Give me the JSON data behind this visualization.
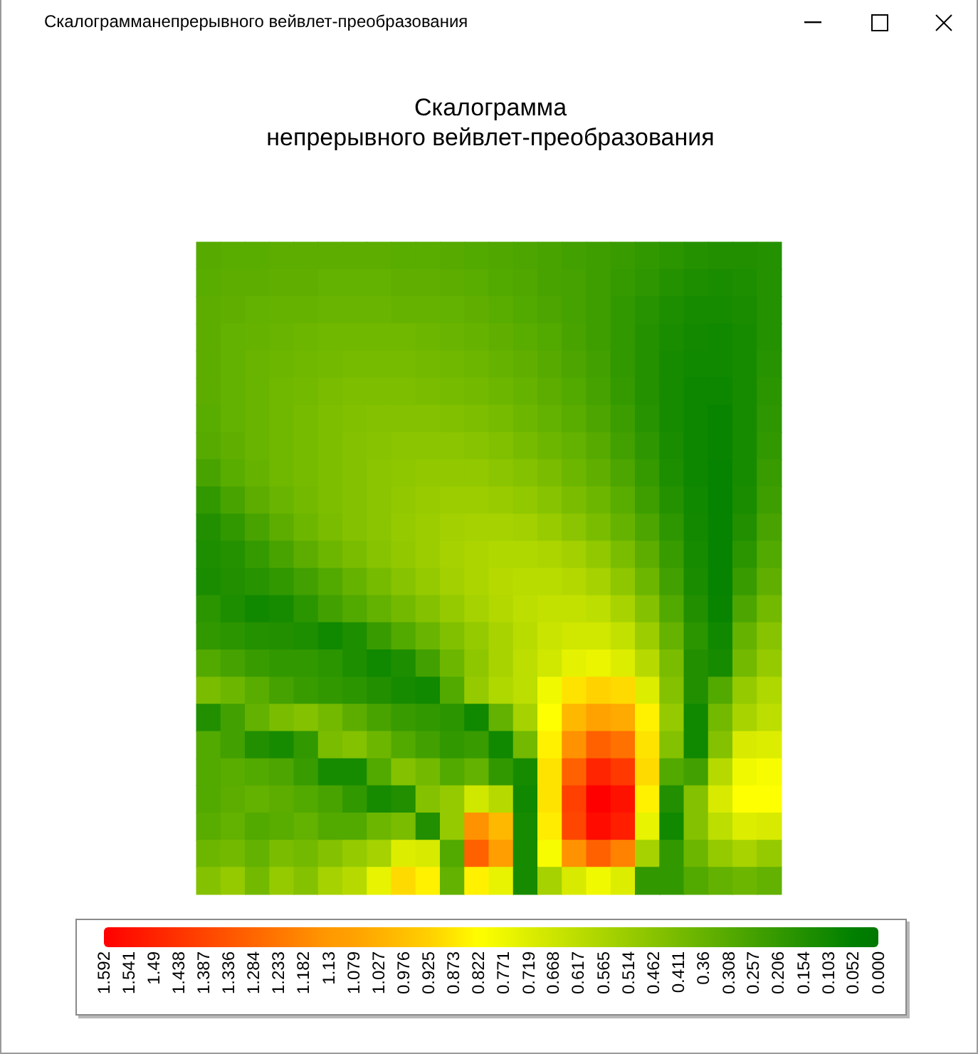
{
  "chart_data": {
    "type": "heatmap",
    "title": "Скалограмма\nнепрерывного вейвлет-преобразования",
    "annotations": [
      "Скалограмманепрерывного вейвлет-преобразования"
    ],
    "categories": [
      null,
      null,
      null,
      null,
      null,
      null,
      null,
      null,
      null,
      null,
      null,
      null,
      null,
      null,
      null,
      null,
      null,
      null,
      null,
      null,
      null,
      null,
      null,
      null
    ],
    "y_categories": [
      null,
      null,
      null,
      null,
      null,
      null,
      null,
      null,
      null,
      null,
      null,
      null,
      null,
      null,
      null,
      null,
      null,
      null,
      null,
      null,
      null,
      null,
      null,
      null
    ],
    "cells": [
      [
        0.31,
        0.32,
        0.32,
        0.33,
        0.33,
        0.33,
        0.33,
        0.33,
        0.32,
        0.32,
        0.31,
        0.3,
        0.29,
        0.28,
        0.27,
        0.25,
        0.24,
        0.22,
        0.2,
        0.18,
        0.16,
        0.15,
        0.15,
        0.16
      ],
      [
        0.32,
        0.33,
        0.33,
        0.34,
        0.34,
        0.35,
        0.35,
        0.35,
        0.34,
        0.34,
        0.33,
        0.32,
        0.3,
        0.29,
        0.27,
        0.26,
        0.24,
        0.21,
        0.19,
        0.16,
        0.14,
        0.13,
        0.14,
        0.16
      ],
      [
        0.33,
        0.34,
        0.35,
        0.36,
        0.36,
        0.37,
        0.37,
        0.37,
        0.36,
        0.36,
        0.35,
        0.34,
        0.32,
        0.3,
        0.28,
        0.26,
        0.24,
        0.2,
        0.17,
        0.14,
        0.12,
        0.12,
        0.13,
        0.16
      ],
      [
        0.33,
        0.35,
        0.36,
        0.37,
        0.38,
        0.39,
        0.39,
        0.39,
        0.39,
        0.38,
        0.37,
        0.36,
        0.34,
        0.32,
        0.3,
        0.27,
        0.24,
        0.2,
        0.16,
        0.13,
        0.11,
        0.1,
        0.12,
        0.16
      ],
      [
        0.33,
        0.35,
        0.37,
        0.38,
        0.39,
        0.4,
        0.41,
        0.41,
        0.41,
        0.4,
        0.39,
        0.38,
        0.36,
        0.34,
        0.31,
        0.28,
        0.25,
        0.2,
        0.16,
        0.12,
        0.1,
        0.1,
        0.12,
        0.17
      ],
      [
        0.33,
        0.35,
        0.37,
        0.39,
        0.4,
        0.42,
        0.43,
        0.43,
        0.43,
        0.42,
        0.41,
        0.4,
        0.38,
        0.36,
        0.33,
        0.3,
        0.26,
        0.21,
        0.16,
        0.12,
        0.09,
        0.09,
        0.12,
        0.18
      ],
      [
        0.32,
        0.35,
        0.37,
        0.39,
        0.41,
        0.43,
        0.44,
        0.45,
        0.45,
        0.45,
        0.44,
        0.43,
        0.41,
        0.38,
        0.35,
        0.32,
        0.28,
        0.23,
        0.17,
        0.12,
        0.09,
        0.08,
        0.12,
        0.19
      ],
      [
        0.31,
        0.34,
        0.37,
        0.39,
        0.41,
        0.43,
        0.45,
        0.46,
        0.47,
        0.47,
        0.47,
        0.46,
        0.44,
        0.41,
        0.38,
        0.35,
        0.31,
        0.25,
        0.19,
        0.13,
        0.09,
        0.08,
        0.12,
        0.2
      ],
      [
        0.27,
        0.32,
        0.36,
        0.39,
        0.41,
        0.43,
        0.45,
        0.47,
        0.48,
        0.49,
        0.49,
        0.49,
        0.47,
        0.45,
        0.42,
        0.38,
        0.34,
        0.28,
        0.21,
        0.14,
        0.09,
        0.07,
        0.12,
        0.22
      ],
      [
        0.2,
        0.27,
        0.33,
        0.37,
        0.4,
        0.43,
        0.45,
        0.47,
        0.49,
        0.51,
        0.52,
        0.52,
        0.51,
        0.49,
        0.46,
        0.42,
        0.38,
        0.32,
        0.24,
        0.16,
        0.1,
        0.07,
        0.13,
        0.24
      ],
      [
        0.15,
        0.2,
        0.27,
        0.33,
        0.38,
        0.42,
        0.45,
        0.47,
        0.5,
        0.52,
        0.54,
        0.55,
        0.55,
        0.54,
        0.51,
        0.47,
        0.42,
        0.36,
        0.28,
        0.19,
        0.11,
        0.07,
        0.15,
        0.27
      ],
      [
        0.14,
        0.16,
        0.21,
        0.27,
        0.33,
        0.38,
        0.42,
        0.46,
        0.49,
        0.52,
        0.55,
        0.57,
        0.58,
        0.58,
        0.57,
        0.54,
        0.49,
        0.42,
        0.33,
        0.22,
        0.12,
        0.07,
        0.18,
        0.3
      ],
      [
        0.13,
        0.15,
        0.17,
        0.2,
        0.25,
        0.3,
        0.36,
        0.41,
        0.46,
        0.5,
        0.54,
        0.57,
        0.6,
        0.61,
        0.61,
        0.59,
        0.55,
        0.48,
        0.38,
        0.25,
        0.13,
        0.07,
        0.22,
        0.34
      ],
      [
        0.18,
        0.14,
        0.1,
        0.12,
        0.18,
        0.25,
        0.3,
        0.35,
        0.4,
        0.45,
        0.5,
        0.55,
        0.59,
        0.62,
        0.64,
        0.64,
        0.62,
        0.56,
        0.45,
        0.3,
        0.15,
        0.08,
        0.28,
        0.4
      ],
      [
        0.2,
        0.18,
        0.16,
        0.15,
        0.14,
        0.1,
        0.14,
        0.22,
        0.3,
        0.37,
        0.44,
        0.5,
        0.56,
        0.61,
        0.66,
        0.68,
        0.68,
        0.64,
        0.52,
        0.36,
        0.18,
        0.1,
        0.36,
        0.46
      ],
      [
        0.3,
        0.26,
        0.22,
        0.2,
        0.2,
        0.18,
        0.14,
        0.1,
        0.14,
        0.25,
        0.38,
        0.48,
        0.56,
        0.62,
        0.68,
        0.74,
        0.76,
        0.72,
        0.6,
        0.42,
        0.15,
        0.12,
        0.4,
        0.5
      ],
      [
        0.42,
        0.38,
        0.32,
        0.26,
        0.22,
        0.2,
        0.18,
        0.15,
        0.12,
        0.1,
        0.3,
        0.5,
        0.58,
        0.62,
        0.78,
        0.88,
        0.92,
        0.9,
        0.72,
        0.45,
        0.15,
        0.3,
        0.5,
        0.58
      ],
      [
        0.15,
        0.25,
        0.35,
        0.42,
        0.45,
        0.4,
        0.33,
        0.27,
        0.22,
        0.2,
        0.18,
        0.1,
        0.35,
        0.55,
        0.82,
        1.0,
        1.08,
        1.05,
        0.85,
        0.5,
        0.1,
        0.4,
        0.56,
        0.62
      ],
      [
        0.3,
        0.25,
        0.15,
        0.12,
        0.2,
        0.42,
        0.45,
        0.38,
        0.3,
        0.25,
        0.2,
        0.22,
        0.1,
        0.4,
        0.85,
        1.15,
        1.3,
        1.25,
        0.88,
        0.45,
        0.1,
        0.45,
        0.7,
        0.72
      ],
      [
        0.3,
        0.32,
        0.3,
        0.28,
        0.22,
        0.12,
        0.12,
        0.3,
        0.45,
        0.4,
        0.3,
        0.35,
        0.2,
        0.12,
        0.88,
        1.3,
        1.48,
        1.42,
        0.9,
        0.3,
        0.25,
        0.6,
        0.78,
        0.8
      ],
      [
        0.3,
        0.33,
        0.35,
        0.33,
        0.3,
        0.27,
        0.2,
        0.12,
        0.15,
        0.45,
        0.5,
        0.68,
        0.6,
        0.1,
        0.88,
        1.4,
        1.592,
        1.54,
        0.85,
        0.15,
        0.45,
        0.7,
        0.82,
        0.82
      ],
      [
        0.32,
        0.35,
        0.3,
        0.32,
        0.35,
        0.3,
        0.3,
        0.38,
        0.42,
        0.15,
        0.5,
        1.15,
        1.0,
        0.12,
        0.86,
        1.38,
        1.56,
        1.5,
        0.75,
        0.1,
        0.45,
        0.62,
        0.72,
        0.7
      ],
      [
        0.38,
        0.4,
        0.35,
        0.42,
        0.4,
        0.45,
        0.5,
        0.55,
        0.72,
        0.7,
        0.3,
        1.3,
        1.1,
        0.12,
        0.8,
        1.15,
        1.3,
        1.2,
        0.55,
        0.2,
        0.38,
        0.5,
        0.56,
        0.5
      ],
      [
        0.45,
        0.5,
        0.4,
        0.5,
        0.45,
        0.55,
        0.6,
        0.75,
        0.9,
        0.85,
        0.35,
        0.85,
        0.75,
        0.12,
        0.55,
        0.7,
        0.78,
        0.72,
        0.2,
        0.2,
        0.3,
        0.35,
        0.38,
        0.35
      ]
    ],
    "clim": [
      0,
      1.592
    ],
    "cticks": [
      1.592,
      1.541,
      1.49,
      1.438,
      1.387,
      1.336,
      1.284,
      1.233,
      1.182,
      1.13,
      1.079,
      1.027,
      0.976,
      0.925,
      0.873,
      0.822,
      0.771,
      0.719,
      0.668,
      0.617,
      0.565,
      0.514,
      0.462,
      0.411,
      0.36,
      0.308,
      0.257,
      0.206,
      0.154,
      0.103,
      0.052,
      {
        "value": 0,
        "label": "0.000"
      }
    ],
    "colors": [
      "#ff0000",
      "#ff1100",
      "#ff2200",
      "#ff3300",
      "#ff4400",
      "#ff5500",
      "#ff6600",
      "#ff7700",
      "#ff8800",
      "#ff9900",
      "#ffa200",
      "#ffb000",
      "#ffc000",
      "#ffd000",
      "#ffe600",
      "#ffff00",
      "#eef700",
      "#dded00",
      "#cce500",
      "#bbdd00",
      "#aad400",
      "#99cc00",
      "#88c300",
      "#77bb00",
      "#66b200",
      "#55aa00",
      "#44a100",
      "#339900",
      "#229000",
      "#118800",
      "#008000",
      "#007700"
    ]
  }
}
